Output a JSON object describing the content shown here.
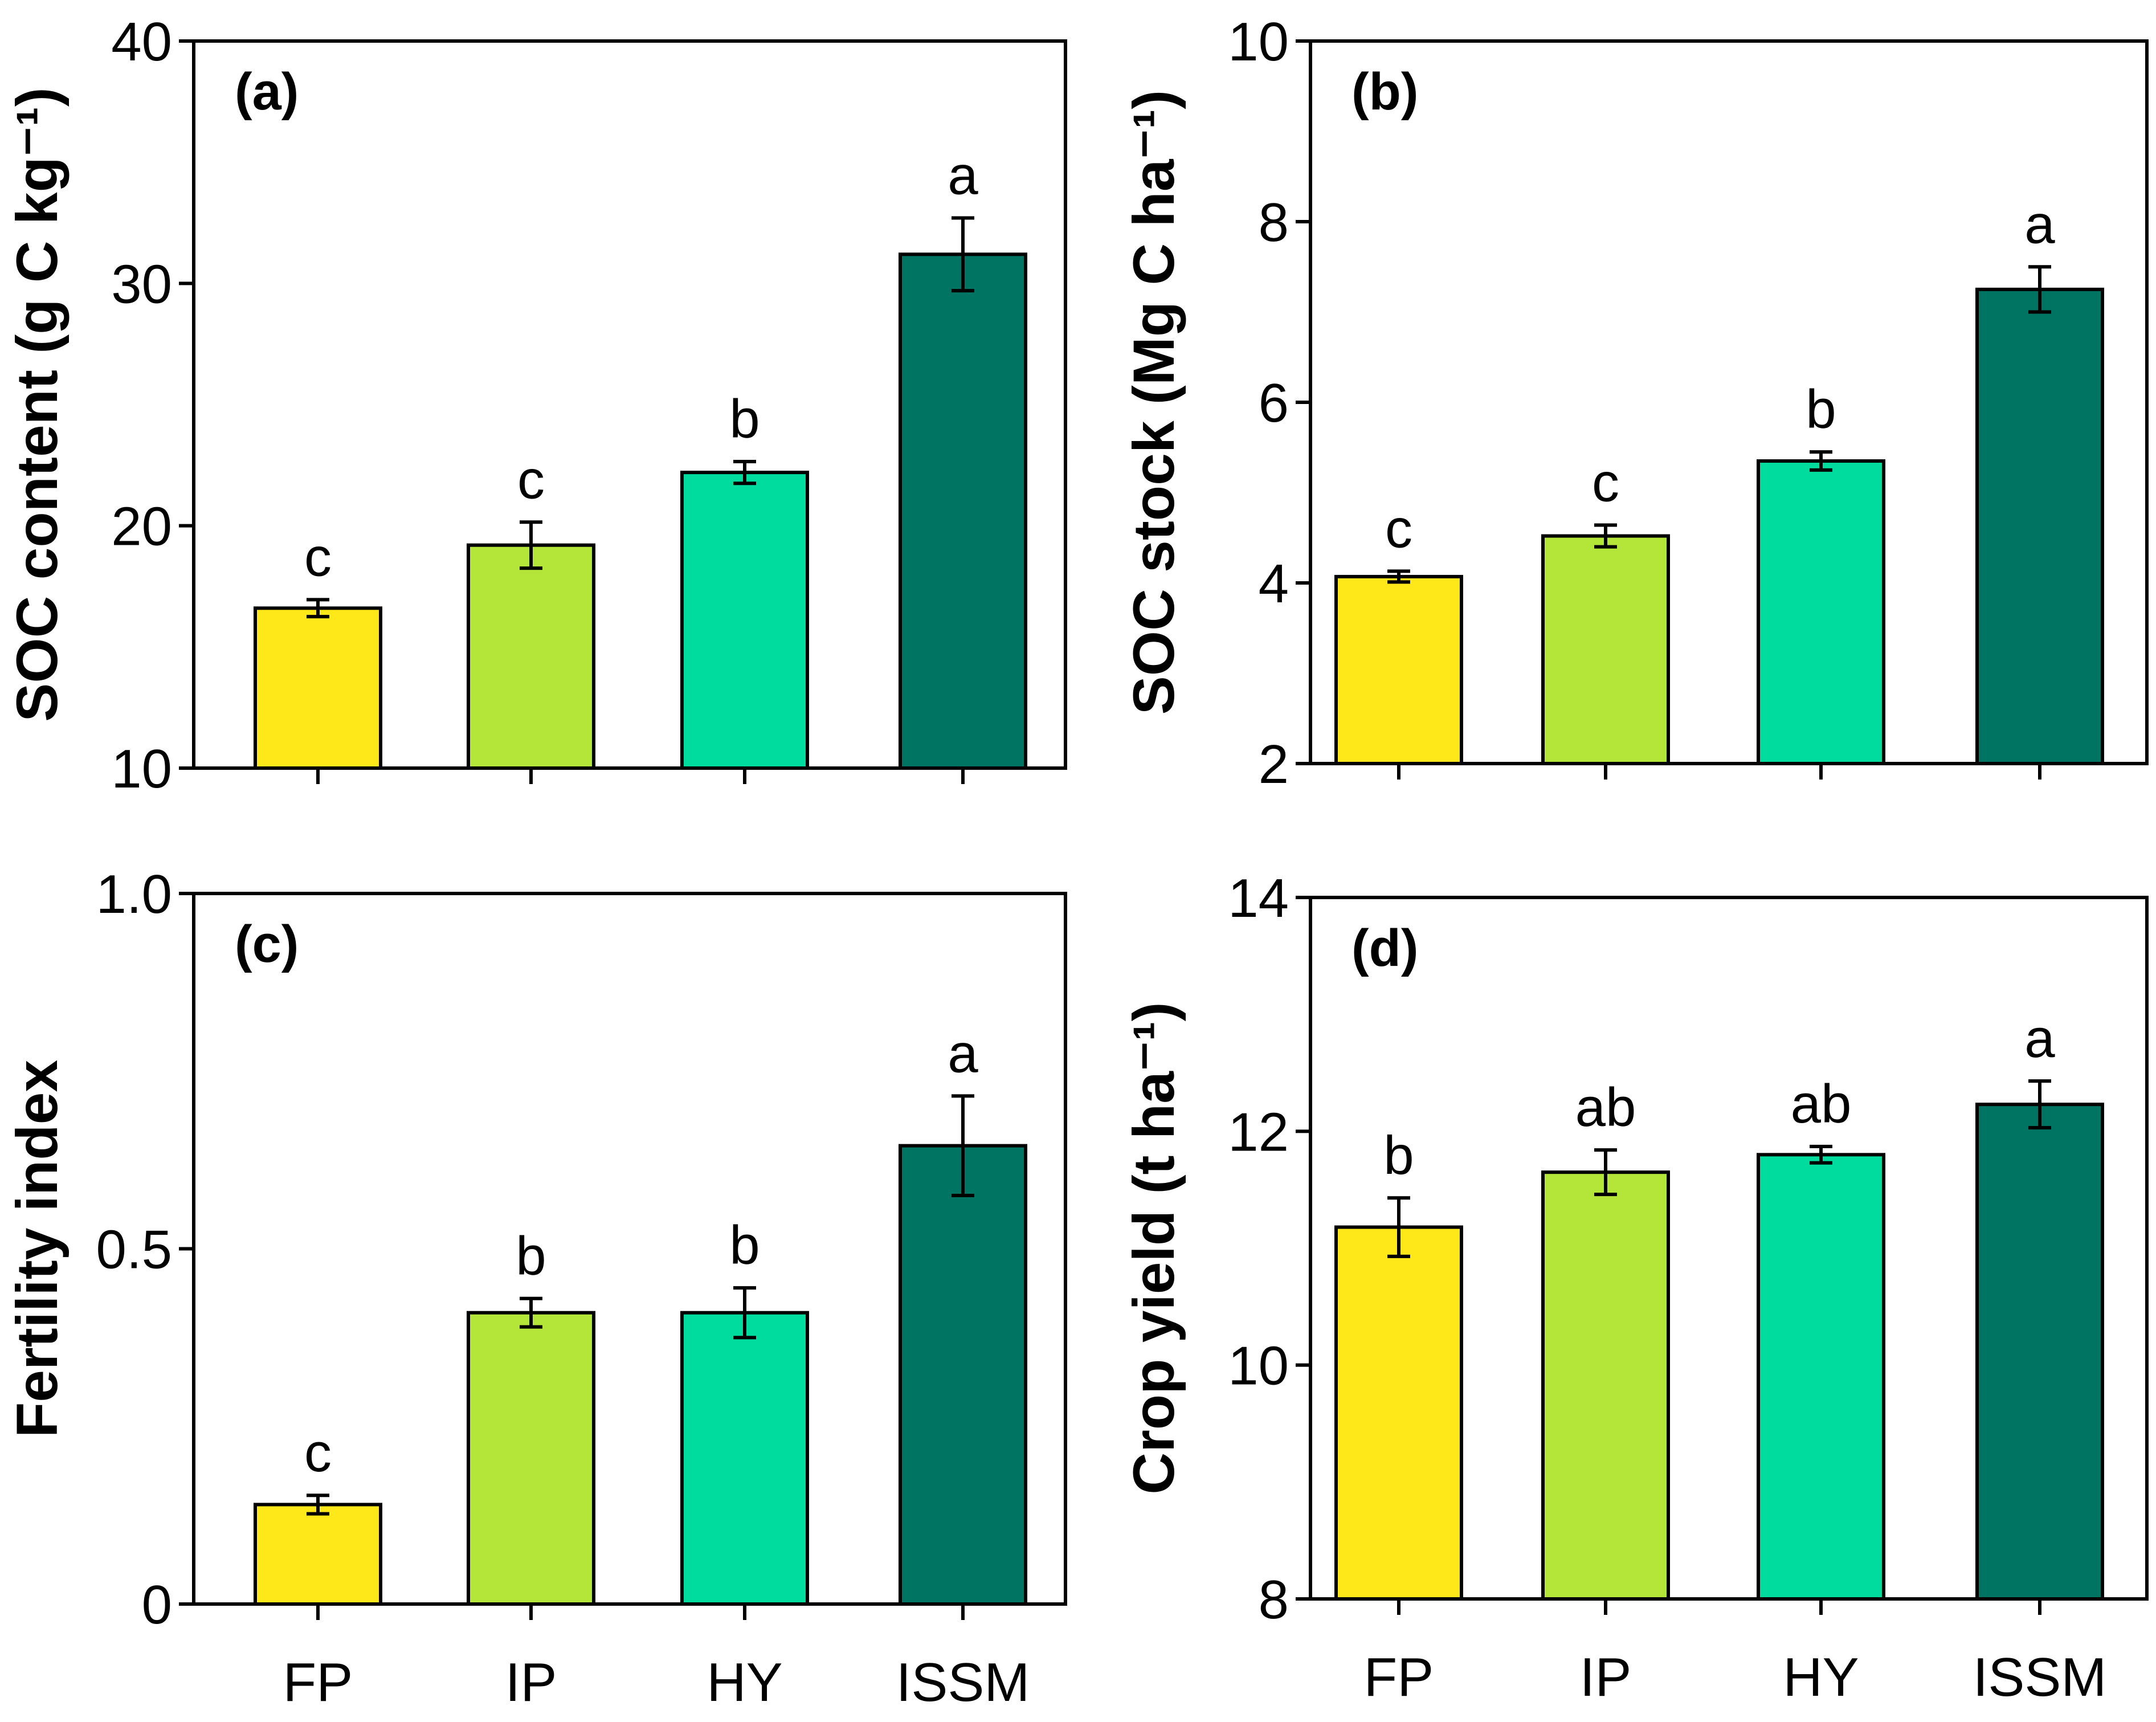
{
  "colors": {
    "FP": "#ffe81a",
    "IP": "#b4e63a",
    "HY": "#00dc9e",
    "ISSM": "#007463"
  },
  "chart_data": [
    {
      "type": "bar",
      "panel": "(a)",
      "ylabel": "SOC  content (g C kg⁻¹)",
      "ylim": [
        10,
        40
      ],
      "yticks": [
        "10",
        "20",
        "30",
        "40"
      ],
      "categories": [
        "FP",
        "IP",
        "HY",
        "ISSM"
      ],
      "values": [
        16.6,
        19.2,
        22.2,
        31.2
      ],
      "errors": [
        0.35,
        0.95,
        0.45,
        1.5
      ],
      "significance": [
        "c",
        "c",
        "b",
        "a"
      ],
      "show_xticklabels": false
    },
    {
      "type": "bar",
      "panel": "(b)",
      "ylabel": "SOC  stock (Mg C ha⁻¹)",
      "ylim": [
        2,
        10
      ],
      "yticks": [
        "2",
        "4",
        "6",
        "8",
        "10"
      ],
      "categories": [
        "FP",
        "IP",
        "HY",
        "ISSM"
      ],
      "values": [
        4.07,
        4.52,
        5.35,
        7.25
      ],
      "errors": [
        0.06,
        0.12,
        0.1,
        0.25
      ],
      "significance": [
        "c",
        "c",
        "b",
        "a"
      ],
      "show_xticklabels": false
    },
    {
      "type": "bar",
      "panel": "(c)",
      "ylabel": "Fertility index",
      "ylim": [
        0,
        1.0
      ],
      "yticks": [
        "0",
        "0.5",
        "1.0"
      ],
      "categories": [
        "FP",
        "IP",
        "HY",
        "ISSM"
      ],
      "values": [
        0.14,
        0.41,
        0.41,
        0.645
      ],
      "errors": [
        0.013,
        0.02,
        0.035,
        0.07
      ],
      "significance": [
        "c",
        "b",
        "b",
        "a"
      ],
      "show_xticklabels": true
    },
    {
      "type": "bar",
      "panel": "(d)",
      "ylabel": "Crop yield (t ha⁻¹)",
      "ylim": [
        8,
        14
      ],
      "yticks": [
        "8",
        "10",
        "12",
        "14"
      ],
      "categories": [
        "FP",
        "IP",
        "HY",
        "ISSM"
      ],
      "values": [
        11.18,
        11.65,
        11.8,
        12.23
      ],
      "errors": [
        0.25,
        0.19,
        0.07,
        0.2
      ],
      "significance": [
        "b",
        "ab",
        "ab",
        "a"
      ],
      "show_xticklabels": true
    }
  ]
}
